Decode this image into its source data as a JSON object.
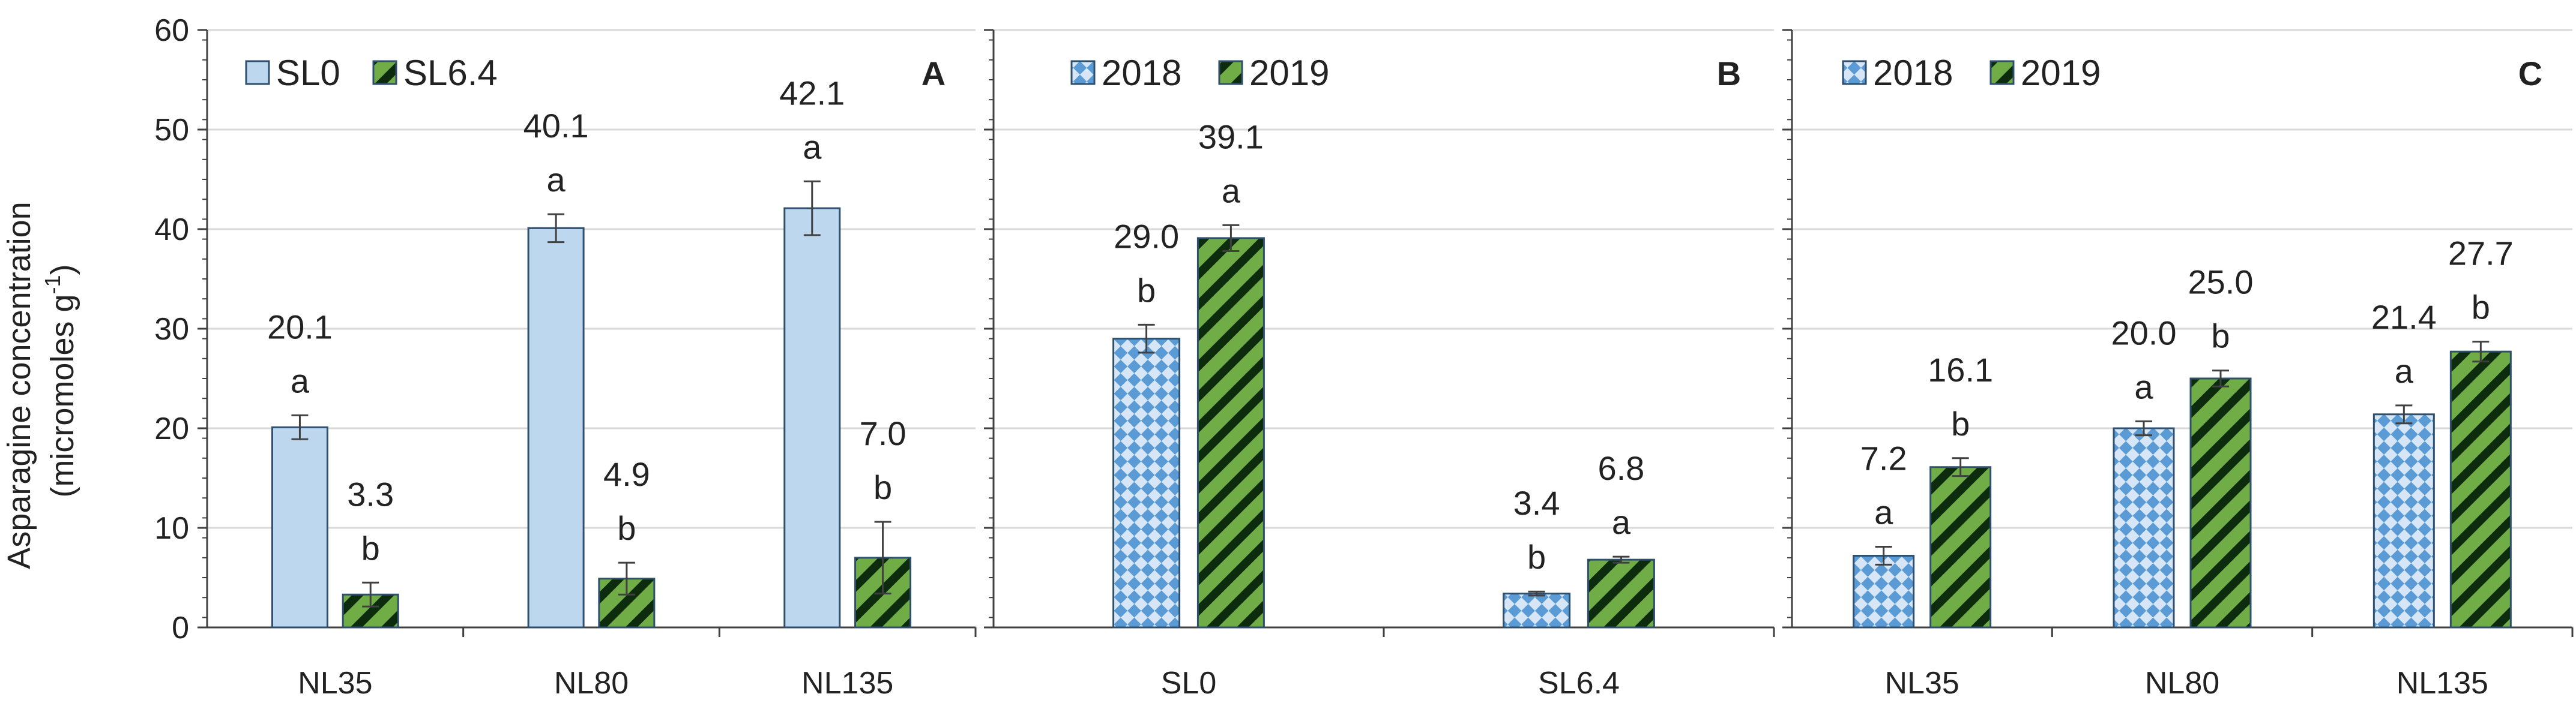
{
  "chart_data": [
    {
      "type": "bar",
      "panel": "A",
      "categories": [
        "NL35",
        "NL80",
        "NL135"
      ],
      "series": [
        {
          "name": "SL0",
          "values": [
            20.1,
            40.1,
            42.1
          ],
          "labels": [
            "20.1",
            "40.1",
            "42.1"
          ],
          "errors": [
            1.2,
            1.4,
            2.7
          ],
          "letters": [
            "a",
            "a",
            "a"
          ],
          "style": "solid",
          "color": "#bdd7ee"
        },
        {
          "name": "SL6.4",
          "values": [
            3.3,
            4.9,
            7.0
          ],
          "labels": [
            "3.3",
            "4.9",
            "7.0"
          ],
          "errors": [
            1.2,
            1.6,
            3.6
          ],
          "letters": [
            "b",
            "b",
            "b"
          ],
          "style": "diagonal",
          "color": "#70ad47"
        }
      ],
      "ylabel": "Asparagine concentration (micromoles g-1)",
      "ylim": [
        0,
        60
      ],
      "yticks": [
        "0",
        "10",
        "20",
        "30",
        "40",
        "50",
        "60"
      ],
      "grid": true,
      "legend": "top-left"
    },
    {
      "type": "bar",
      "panel": "B",
      "categories": [
        "SL0",
        "SL6.4"
      ],
      "series": [
        {
          "name": "2018",
          "values": [
            29.0,
            3.4
          ],
          "labels": [
            "29.0",
            "3.4"
          ],
          "errors": [
            1.4,
            0.2
          ],
          "letters": [
            "b",
            "b"
          ],
          "style": "checker",
          "color": "#5b9bd5"
        },
        {
          "name": "2019",
          "values": [
            39.1,
            6.8
          ],
          "labels": [
            "39.1",
            "6.8"
          ],
          "errors": [
            1.3,
            0.3
          ],
          "letters": [
            "a",
            "a"
          ],
          "style": "diagonal",
          "color": "#70ad47"
        }
      ],
      "ylim": [
        0,
        60
      ],
      "grid": true,
      "legend": "top-left"
    },
    {
      "type": "bar",
      "panel": "C",
      "categories": [
        "NL35",
        "NL80",
        "NL135"
      ],
      "series": [
        {
          "name": "2018",
          "values": [
            7.2,
            20.0,
            21.4
          ],
          "labels": [
            "7.2",
            "20.0",
            "21.4"
          ],
          "errors": [
            0.9,
            0.7,
            0.9
          ],
          "letters": [
            "a",
            "a",
            "a"
          ],
          "style": "checker",
          "color": "#5b9bd5"
        },
        {
          "name": "2019",
          "values": [
            16.1,
            25.0,
            27.7
          ],
          "labels": [
            "16.1",
            "25.0",
            "27.7"
          ],
          "errors": [
            0.9,
            0.8,
            1.0
          ],
          "letters": [
            "b",
            "b",
            "b"
          ],
          "style": "diagonal",
          "color": "#70ad47"
        }
      ],
      "ylim": [
        0,
        60
      ],
      "grid": true,
      "legend": "top-left"
    }
  ],
  "panel_letters": [
    "A",
    "B",
    "C"
  ],
  "yaxis_title": {
    "main": "Asparagine concentration",
    "paren_open": "(micromoles g",
    "superscript": "-1",
    "paren_close": ")"
  },
  "colors": {
    "grid": "#d9d9d9",
    "axis": "#404040",
    "bar_outline": "#2f4f6f",
    "error_bar": "#404040"
  }
}
